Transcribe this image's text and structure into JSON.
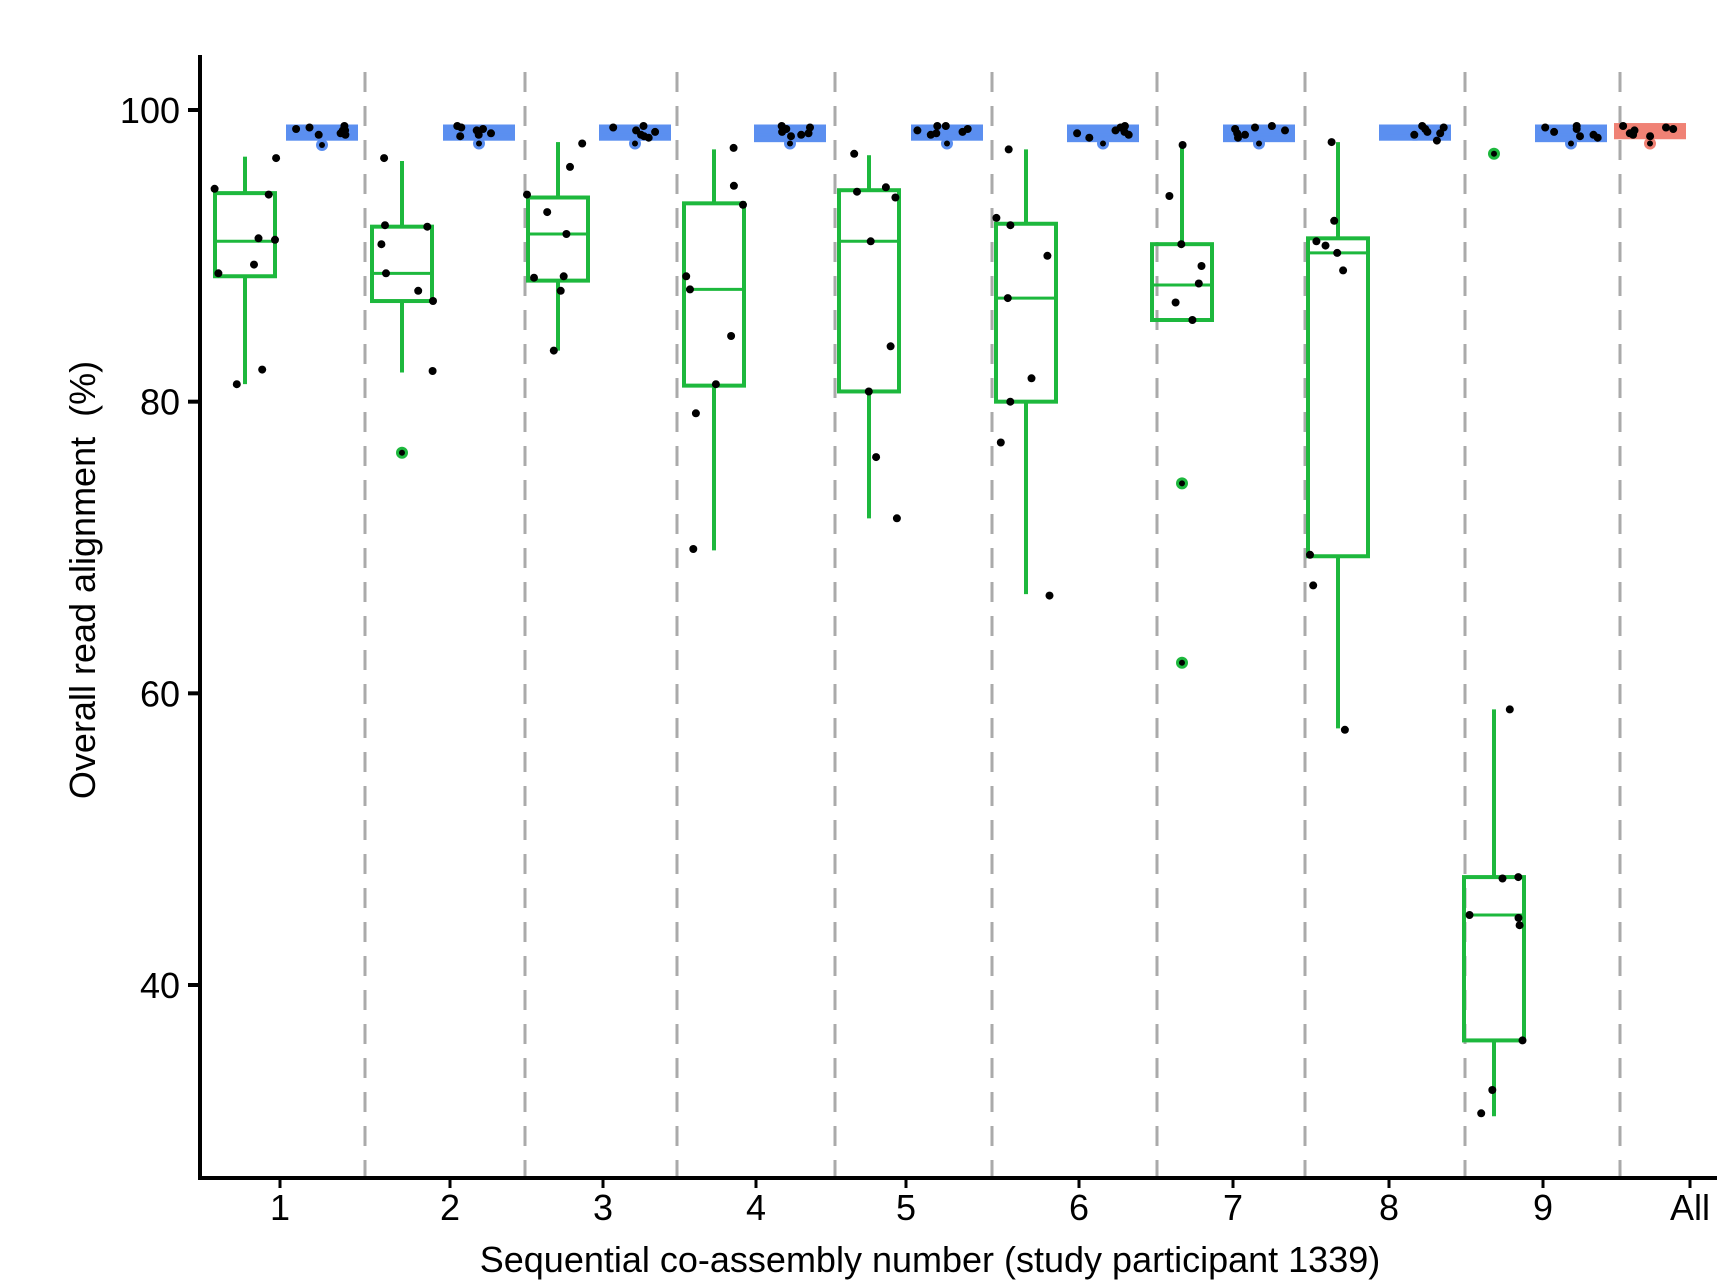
{
  "chart_data": {
    "type": "box",
    "xlabel": "Sequential co-assembly number (study participant 1339)",
    "ylabel": "Overall read alignment  (%)",
    "ylim": [
      27,
      104
    ],
    "y_ticks": [
      40,
      60,
      80,
      100
    ],
    "categories": [
      "1",
      "2",
      "3",
      "4",
      "5",
      "6",
      "7",
      "8",
      "9",
      "All"
    ],
    "grid": "dashed vertical separators between groups",
    "colors": {
      "green": "#1db83d",
      "blue": "#5b8ff0",
      "red": "#f08275",
      "separator": "#aaaaaa",
      "point": "#000000"
    },
    "series": [
      {
        "color": "green",
        "boxes": [
          {
            "category": "1",
            "whisker_low": 81.2,
            "q1": 88.6,
            "median": 91.0,
            "q3": 94.3,
            "whisker_high": 96.8,
            "outliers": [],
            "points": [
              96.7,
              94.6,
              94.2,
              91.2,
              91.1,
              89.4,
              88.8,
              82.2,
              81.2
            ]
          },
          {
            "category": "2",
            "whisker_low": 82.0,
            "q1": 86.9,
            "median": 88.8,
            "q3": 92.0,
            "whisker_high": 96.5,
            "outliers": [
              76.5
            ],
            "points": [
              96.7,
              92.1,
              92.0,
              90.8,
              88.8,
              87.6,
              86.9,
              82.1
            ]
          },
          {
            "category": "3",
            "whisker_low": 83.5,
            "q1": 88.3,
            "median": 91.5,
            "q3": 94.0,
            "whisker_high": 97.8,
            "outliers": [],
            "points": [
              97.7,
              96.1,
              94.2,
              93.0,
              91.5,
              88.6,
              88.5,
              87.6,
              83.5
            ]
          },
          {
            "category": "4",
            "whisker_low": 69.8,
            "q1": 81.1,
            "median": 87.7,
            "q3": 93.6,
            "whisker_high": 97.3,
            "outliers": [],
            "points": [
              97.4,
              94.8,
              93.5,
              88.6,
              87.7,
              84.5,
              81.2,
              79.2,
              69.9
            ]
          },
          {
            "category": "5",
            "whisker_low": 72.0,
            "q1": 80.7,
            "median": 91.0,
            "q3": 94.5,
            "whisker_high": 96.9,
            "outliers": [],
            "points": [
              97.0,
              94.7,
              94.4,
              94.0,
              91.0,
              83.8,
              80.7,
              76.2,
              72.0
            ]
          },
          {
            "category": "6",
            "whisker_low": 66.8,
            "q1": 80.0,
            "median": 87.1,
            "q3": 92.2,
            "whisker_high": 97.3,
            "outliers": [],
            "points": [
              97.3,
              92.6,
              92.1,
              90.0,
              87.1,
              81.6,
              80.0,
              77.2,
              66.7
            ]
          },
          {
            "category": "7",
            "whisker_low": 85.6,
            "q1": 85.6,
            "median": 88.0,
            "q3": 90.8,
            "whisker_high": 97.5,
            "outliers": [
              74.4,
              62.1
            ],
            "points": [
              97.6,
              94.1,
              90.8,
              89.3,
              88.1,
              86.8,
              85.6
            ]
          },
          {
            "category": "8",
            "whisker_low": 57.6,
            "q1": 69.4,
            "median": 90.2,
            "q3": 91.2,
            "whisker_high": 97.8,
            "outliers": [],
            "points": [
              97.8,
              92.4,
              91.0,
              90.7,
              90.2,
              89.0,
              69.5,
              67.4,
              57.5
            ]
          },
          {
            "category": "9",
            "whisker_low": 31.0,
            "q1": 36.2,
            "median": 44.8,
            "q3": 47.4,
            "whisker_high": 58.9,
            "outliers": [
              97.0
            ],
            "points": [
              58.9,
              47.4,
              47.3,
              44.8,
              44.6,
              44.1,
              36.2,
              32.8,
              31.2
            ]
          }
        ]
      },
      {
        "color": "blue",
        "boxes": [
          {
            "category": "1",
            "q1": 98.1,
            "median": 98.4,
            "q3": 98.8,
            "whisker_low": 97.6,
            "whisker_high": 99.0,
            "outliers": [
              97.6
            ],
            "points": [
              98.6,
              98.8,
              98.7,
              98.6,
              98.5,
              98.4,
              98.3,
              98.3,
              98.9
            ]
          },
          {
            "category": "2",
            "q1": 98.1,
            "median": 98.3,
            "q3": 98.8,
            "whisker_low": 97.7,
            "whisker_high": 98.9,
            "outliers": [
              97.7
            ],
            "points": [
              98.9,
              98.8,
              98.7,
              98.6,
              98.4,
              98.3,
              98.2
            ]
          },
          {
            "category": "3",
            "q1": 98.1,
            "median": 98.3,
            "q3": 98.8,
            "whisker_low": 97.7,
            "whisker_high": 98.9,
            "outliers": [
              97.7
            ],
            "points": [
              98.9,
              98.8,
              98.6,
              98.5,
              98.3,
              98.2,
              98.1
            ]
          },
          {
            "category": "4",
            "q1": 98.0,
            "median": 98.3,
            "q3": 98.8,
            "whisker_low": 97.7,
            "whisker_high": 98.9,
            "outliers": [
              97.7
            ],
            "points": [
              98.9,
              98.8,
              98.7,
              98.5,
              98.4,
              98.3,
              98.2
            ]
          },
          {
            "category": "5",
            "q1": 98.1,
            "median": 98.4,
            "q3": 98.8,
            "whisker_low": 97.7,
            "whisker_high": 98.9,
            "outliers": [
              97.7
            ],
            "points": [
              98.9,
              98.9,
              98.7,
              98.6,
              98.5,
              98.4,
              98.3
            ]
          },
          {
            "category": "6",
            "q1": 98.0,
            "median": 98.3,
            "q3": 98.8,
            "whisker_low": 97.7,
            "whisker_high": 98.9,
            "outliers": [
              97.7
            ],
            "points": [
              98.9,
              98.8,
              98.6,
              98.5,
              98.4,
              98.3,
              98.1
            ]
          },
          {
            "category": "7",
            "q1": 98.0,
            "median": 98.3,
            "q3": 98.8,
            "whisker_low": 97.7,
            "whisker_high": 98.9,
            "outliers": [
              97.7
            ],
            "points": [
              98.9,
              98.8,
              98.7,
              98.6,
              98.4,
              98.3,
              98.1
            ]
          },
          {
            "category": "8",
            "q1": 98.1,
            "median": 98.4,
            "q3": 98.8,
            "whisker_low": 97.9,
            "whisker_high": 98.9,
            "outliers": [],
            "points": [
              98.9,
              98.8,
              98.7,
              98.5,
              98.4,
              98.3,
              97.9
            ]
          },
          {
            "category": "9",
            "q1": 98.0,
            "median": 98.3,
            "q3": 98.8,
            "whisker_low": 97.7,
            "whisker_high": 98.9,
            "outliers": [
              97.7
            ],
            "points": [
              98.9,
              98.8,
              98.7,
              98.5,
              98.3,
              98.2,
              98.1
            ]
          }
        ]
      },
      {
        "color": "red",
        "boxes": [
          {
            "category": "All",
            "q1": 98.2,
            "median": 98.5,
            "q3": 98.9,
            "whisker_low": 97.7,
            "whisker_high": 99.0,
            "outliers": [
              97.7
            ],
            "points": [
              98.9,
              98.8,
              98.7,
              98.6,
              98.4,
              98.3,
              98.2
            ]
          }
        ]
      }
    ]
  }
}
